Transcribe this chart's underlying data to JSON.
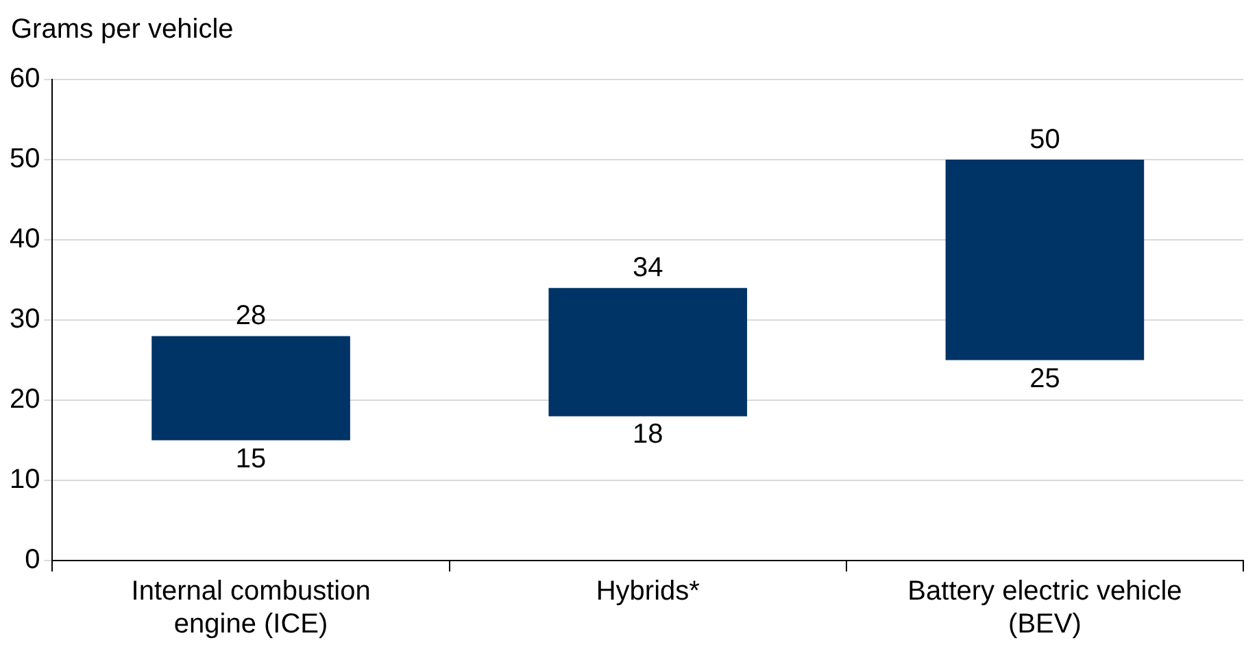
{
  "chart_data": {
    "type": "bar",
    "ylabel": "Grams per vehicle",
    "categories": [
      "Internal combustion engine (ICE)",
      "Hybrids*",
      "Battery electric vehicle (BEV)"
    ],
    "values": [
      13,
      16,
      25
    ],
    "base": [
      15,
      18,
      25
    ],
    "color": "#003366",
    "ylim": [
      0,
      60
    ],
    "yticks": [
      0,
      10,
      20,
      30,
      40,
      50,
      60
    ],
    "grid": "y",
    "legend": false,
    "annotations": [
      {
        "text": "28",
        "x": "Internal combustion engine (ICE)",
        "y": 28
      },
      {
        "text": "15",
        "x": "Internal combustion engine (ICE)",
        "y": 15
      },
      {
        "text": "34",
        "x": "Hybrids*",
        "y": 34
      },
      {
        "text": "18",
        "x": "Hybrids*",
        "y": 18
      },
      {
        "text": "50",
        "x": "Battery electric vehicle (BEV)",
        "y": 50
      },
      {
        "text": "25",
        "x": "Battery electric vehicle (BEV)",
        "y": 25
      }
    ]
  }
}
